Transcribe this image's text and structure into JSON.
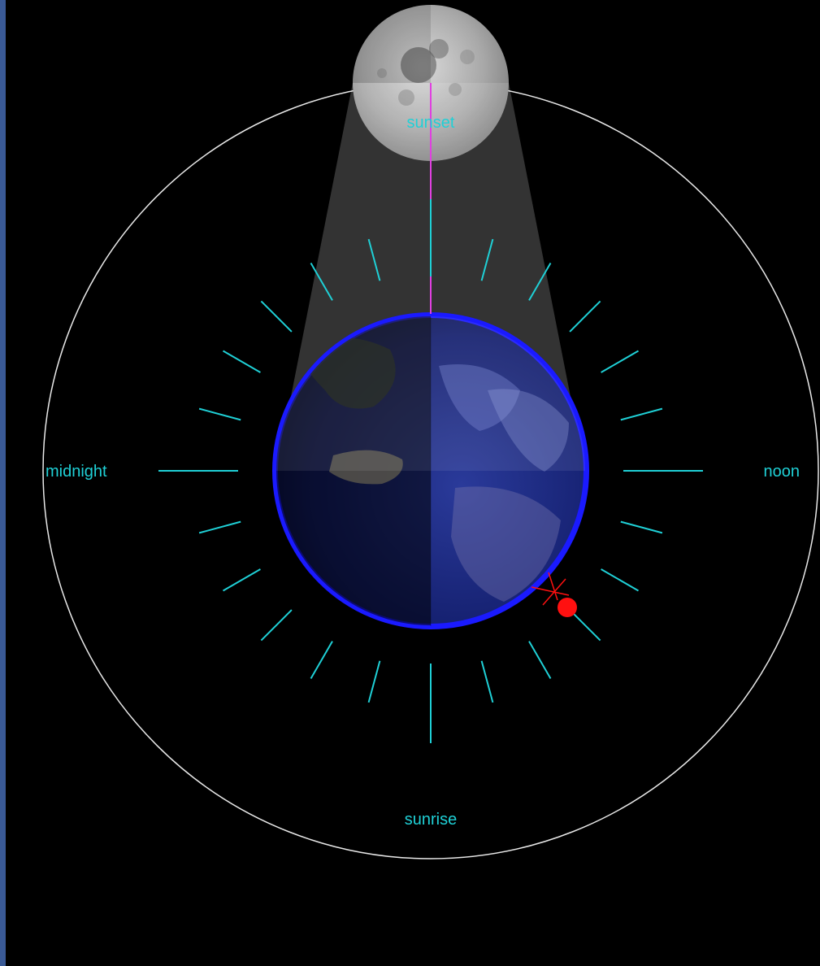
{
  "labels": {
    "sunset": "sunset",
    "midnight": "midnight",
    "noon": "noon",
    "sunrise": "sunrise"
  },
  "colors": {
    "background": "#000000",
    "left_strip": "#3a5a96",
    "orbit": "#e8e8e8",
    "hour_ticks": "#1fd0d6",
    "labels": "#1fd0d6",
    "moon_line": "#e040e0",
    "earth_rim": "#1a1aff",
    "marker": "#ff1010"
  },
  "hour_tick_count": 24,
  "icons": {
    "moon": "moon-image",
    "earth": "earth-globe",
    "observer": "observer-red-dot",
    "horizon": "horizon-cross-marker"
  }
}
